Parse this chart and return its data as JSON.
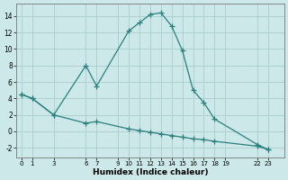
{
  "xlabel": "Humidex (Indice chaleur)",
  "bg_color": "#cce8e8",
  "line_color": "#2a7f7f",
  "grid_color": "#aacccc",
  "line1_x": [
    0,
    1,
    3,
    6,
    7,
    10,
    11,
    12,
    13,
    14,
    15,
    16,
    17,
    18,
    22,
    23
  ],
  "line1_y": [
    4.5,
    4.0,
    2.0,
    8.0,
    5.5,
    12.2,
    13.2,
    14.2,
    14.4,
    12.8,
    9.8,
    5.0,
    3.5,
    1.5,
    -1.6,
    -2.2
  ],
  "line2_x": [
    0,
    1,
    3,
    6,
    7,
    10,
    11,
    12,
    13,
    14,
    15,
    16,
    17,
    18,
    22,
    23
  ],
  "line2_y": [
    4.5,
    4.0,
    2.0,
    1.0,
    1.2,
    0.3,
    0.1,
    -0.1,
    -0.3,
    -0.5,
    -0.7,
    -0.9,
    -1.0,
    -1.2,
    -1.8,
    -2.2
  ],
  "xticks": [
    0,
    1,
    3,
    6,
    7,
    9,
    10,
    11,
    12,
    13,
    14,
    15,
    16,
    17,
    18,
    19,
    22,
    23
  ],
  "yticks": [
    -2,
    0,
    2,
    4,
    6,
    8,
    10,
    12,
    14
  ],
  "xlim": [
    -0.5,
    24.5
  ],
  "ylim": [
    -3.2,
    15.5
  ]
}
